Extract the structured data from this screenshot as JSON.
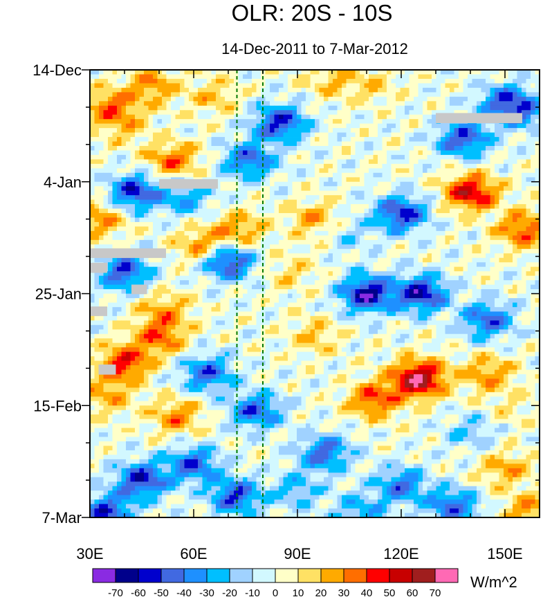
{
  "chart_data": {
    "type": "heatmap",
    "title": "OLR: 20S - 10S",
    "subtitle": "14-Dec-2011 to 7-Mar-2012",
    "x_axis": {
      "range": [
        30,
        160
      ],
      "unit": "degrees east longitude",
      "ticks": [
        {
          "value": 30,
          "label": "30E"
        },
        {
          "value": 60,
          "label": "60E"
        },
        {
          "value": 90,
          "label": "90E"
        },
        {
          "value": 120,
          "label": "120E"
        },
        {
          "value": 150,
          "label": "150E"
        }
      ]
    },
    "y_axis": {
      "range_days": [
        0,
        84
      ],
      "direction": "top-to-bottom",
      "ticks": [
        {
          "value": 0,
          "label": "14-Dec"
        },
        {
          "value": 21,
          "label": "4-Jan"
        },
        {
          "value": 42,
          "label": "25-Jan"
        },
        {
          "value": 63,
          "label": "15-Feb"
        },
        {
          "value": 84,
          "label": "7-Mar"
        }
      ]
    },
    "reference_lines": [
      72.5,
      80
    ],
    "colorbar": {
      "units": "W/m^2",
      "levels": [
        "-70",
        "-60",
        "-50",
        "-40",
        "-30",
        "-20",
        "-10",
        "0",
        "10",
        "20",
        "30",
        "40",
        "50",
        "60",
        "70"
      ],
      "colors": [
        "#8a2be2",
        "#00008b",
        "#0000cd",
        "#4169e1",
        "#1e90ff",
        "#00bfff",
        "#a0d2ff",
        "#d2f8ff",
        "#ffffc8",
        "#ffe164",
        "#ffaa00",
        "#ff6e00",
        "#ff0000",
        "#c80000",
        "#a01e1e",
        "#ff69b4"
      ]
    },
    "missing_color": "#c8c8c8",
    "anomaly_features": [
      {
        "lon": 36,
        "day": 7,
        "value": 35
      },
      {
        "lon": 48,
        "day": 3,
        "value": 30
      },
      {
        "lon": 66,
        "day": 5,
        "value": 20
      },
      {
        "lon": 100,
        "day": 2,
        "value": 20
      },
      {
        "lon": 112,
        "day": 3,
        "value": 15
      },
      {
        "lon": 150,
        "day": 6,
        "value": -40
      },
      {
        "lon": 138,
        "day": 13,
        "value": -50
      },
      {
        "lon": 155,
        "day": 8,
        "value": -30
      },
      {
        "lon": 85,
        "day": 10,
        "value": -55
      },
      {
        "lon": 76,
        "day": 17,
        "value": -45
      },
      {
        "lon": 54,
        "day": 17,
        "value": 35
      },
      {
        "lon": 40,
        "day": 11,
        "value": 15
      },
      {
        "lon": 43,
        "day": 23,
        "value": -55
      },
      {
        "lon": 33,
        "day": 28,
        "value": 30
      },
      {
        "lon": 58,
        "day": 24,
        "value": -30
      },
      {
        "lon": 62,
        "day": 33,
        "value": 30
      },
      {
        "lon": 73,
        "day": 30,
        "value": 30
      },
      {
        "lon": 95,
        "day": 28,
        "value": 25
      },
      {
        "lon": 140,
        "day": 23,
        "value": 55
      },
      {
        "lon": 155,
        "day": 30,
        "value": 40
      },
      {
        "lon": 120,
        "day": 27,
        "value": -55
      },
      {
        "lon": 105,
        "day": 31,
        "value": -15
      },
      {
        "lon": 70,
        "day": 36,
        "value": -55
      },
      {
        "lon": 40,
        "day": 38,
        "value": -50
      },
      {
        "lon": 52,
        "day": 45,
        "value": 25
      },
      {
        "lon": 110,
        "day": 42,
        "value": -65
      },
      {
        "lon": 126,
        "day": 42,
        "value": -60
      },
      {
        "lon": 145,
        "day": 47,
        "value": -45
      },
      {
        "lon": 88,
        "day": 38,
        "value": 15
      },
      {
        "lon": 40,
        "day": 55,
        "value": 45
      },
      {
        "lon": 50,
        "day": 50,
        "value": 35
      },
      {
        "lon": 125,
        "day": 58,
        "value": 70
      },
      {
        "lon": 112,
        "day": 62,
        "value": 40
      },
      {
        "lon": 145,
        "day": 57,
        "value": 30
      },
      {
        "lon": 95,
        "day": 50,
        "value": 20
      },
      {
        "lon": 64,
        "day": 57,
        "value": -45
      },
      {
        "lon": 78,
        "day": 64,
        "value": -45
      },
      {
        "lon": 55,
        "day": 65,
        "value": 30
      },
      {
        "lon": 35,
        "day": 61,
        "value": 25
      },
      {
        "lon": 45,
        "day": 77,
        "value": -55
      },
      {
        "lon": 35,
        "day": 83,
        "value": -50
      },
      {
        "lon": 60,
        "day": 74,
        "value": -45
      },
      {
        "lon": 72,
        "day": 80,
        "value": -50
      },
      {
        "lon": 98,
        "day": 72,
        "value": -45
      },
      {
        "lon": 90,
        "day": 79,
        "value": -25
      },
      {
        "lon": 120,
        "day": 78,
        "value": -40
      },
      {
        "lon": 135,
        "day": 82,
        "value": -45
      },
      {
        "lon": 150,
        "day": 75,
        "value": 25
      },
      {
        "lon": 157,
        "day": 83,
        "value": 30
      },
      {
        "lon": 108,
        "day": 83,
        "value": -30
      },
      {
        "lon": 152,
        "day": 64,
        "value": 10
      },
      {
        "lon": 140,
        "day": 68,
        "value": -20
      }
    ]
  }
}
